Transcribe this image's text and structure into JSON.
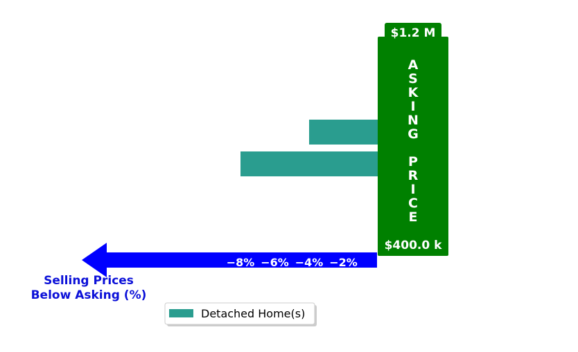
{
  "chart_data": {
    "type": "bar",
    "orientation": "horizontal",
    "title": "",
    "xlabel": "Selling Prices\nBelow Asking (%)",
    "ylabel": "",
    "xlim": [
      -9.2,
      0
    ],
    "ticks": [
      -8,
      -6,
      -4,
      -2
    ],
    "tick_labels": [
      "−8%",
      "−6%",
      "−4%",
      "−2%"
    ],
    "series": [
      {
        "name": "Detached Home(s)",
        "values": [
          -4.0,
          -8.0
        ],
        "color": "#2a9d8f"
      }
    ],
    "asking_price": {
      "label": "ASKING\nPRICE",
      "top_label": "$1.2 M",
      "bottom_label": "$400.0 k",
      "color": "#008000"
    },
    "axis_arrow_color": "#0000ff",
    "legend": {
      "position": "bottom",
      "entries": [
        "Detached Home(s)"
      ]
    },
    "grid": false
  }
}
